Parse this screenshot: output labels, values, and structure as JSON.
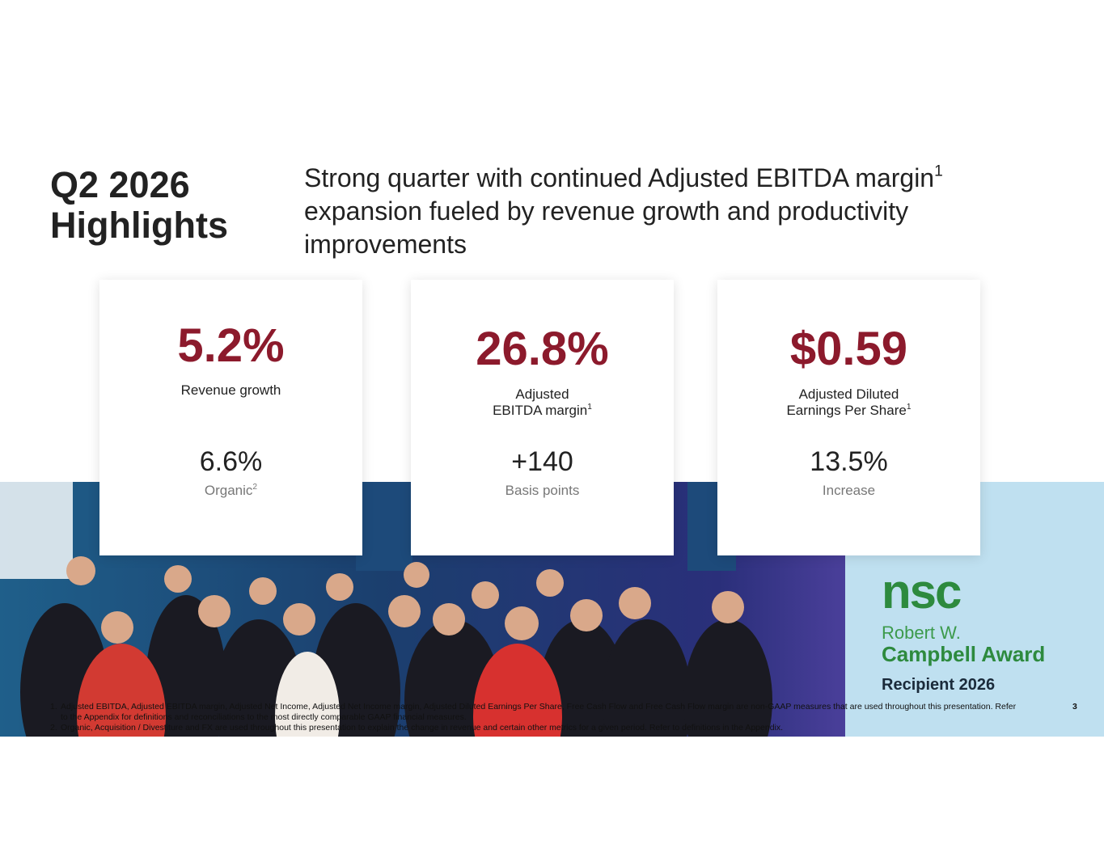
{
  "header": {
    "title": [
      "Q2 2026",
      "Highlights"
    ],
    "subtitle": {
      "text": "Strong quarter with continued Adjusted EBITDA margin",
      "sup": "1",
      "rest": "expansion fueled by revenue growth and productivity improvements"
    }
  },
  "cards": [
    {
      "value": "5.2%",
      "label": [
        "Revenue growth"
      ],
      "secondary": "6.6%",
      "note": "Organic",
      "note_sup": "2"
    },
    {
      "value": "26.8%",
      "label": [
        "Adjusted",
        "EBITDA margin"
      ],
      "label_sup": "1",
      "secondary": "+140",
      "note": "Basis points"
    },
    {
      "value": "$0.59",
      "label": [
        "Adjusted Diluted",
        "Earnings Per Share"
      ],
      "label_sup": "1",
      "secondary": "13.5%",
      "note": "Increase"
    }
  ],
  "award": {
    "logo": "nsc",
    "name": "Robert W.",
    "award": "Campbell Award",
    "recipient": "Recipient 2026"
  },
  "footnotes": [
    {
      "number": "1.",
      "text": "Adjusted EBITDA, Adjusted EBITDA margin, Adjusted Net Income, Adjusted Net Income margin, Adjusted Diluted Earnings Per Share, Free Cash Flow and Free Cash Flow margin are non-GAAP measures that are used throughout this presentation. Refer to the Appendix for definitions and reconciliations to the most directly comparable GAAP financial measures."
    },
    {
      "number": "2.",
      "text": "Organic, Acquisition / Divestiture and FX are used throughout this presentation to explain the change in revenue and certain other metrics for a given period. Refer to definitions in the Appendix."
    }
  ],
  "page_number": "3"
}
